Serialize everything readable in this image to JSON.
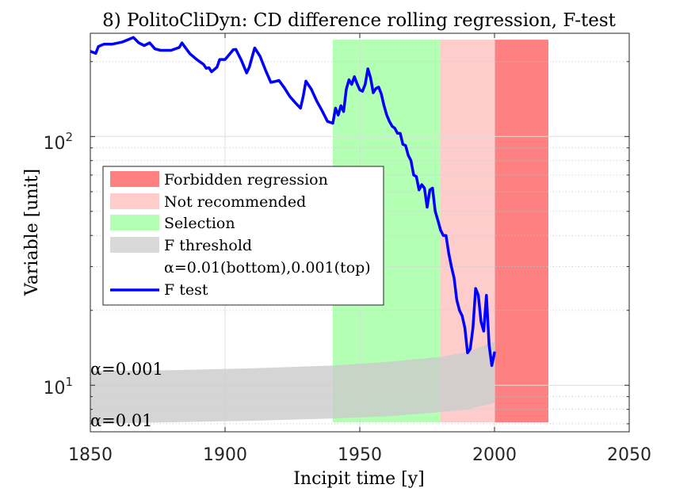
{
  "chart_data": {
    "type": "line",
    "title": "8) PolitoCliDyn: CD difference rolling regression, F-test",
    "xlabel": "Incipit time [y]",
    "ylabel": "Variable [unit]",
    "y_scale": "log",
    "xlim": [
      1850,
      2050
    ],
    "ylim": [
      6.5,
      260
    ],
    "grid": true,
    "x_ticks": [
      1850,
      1900,
      1950,
      2000,
      2050
    ],
    "x_tick_labels": [
      "1850",
      "1900",
      "1950",
      "2000",
      "2050"
    ],
    "y_tick_labels": [
      {
        "value": 10,
        "base": "10",
        "exp": "1"
      },
      {
        "value": 100,
        "base": "10",
        "exp": "2"
      }
    ],
    "legend_position": "left-center",
    "legend": {
      "forbidden": "Forbidden regression",
      "not_recommended": "Not recommended",
      "selection": "Selection",
      "f_threshold": "F threshold",
      "alpha_note": "α=0.01(bottom),0.001(top)",
      "f_test": "F test"
    },
    "annotations": {
      "alpha_top": "α=0.001",
      "alpha_bottom": "α=0.01"
    },
    "regions": [
      {
        "name": "Selection",
        "x0": 1940,
        "x1": 1980,
        "color": "#b3ffb3"
      },
      {
        "name": "Not recommended",
        "x0": 1980,
        "x1": 2000,
        "color": "#ffcccc"
      },
      {
        "name": "Forbidden regression",
        "x0": 2000,
        "x1": 2020,
        "color": "#ff8080"
      }
    ],
    "threshold_band": {
      "color": "#cccccc",
      "x": [
        1850,
        1880,
        1910,
        1940,
        1960,
        1980,
        1990,
        2000
      ],
      "lower": [
        7.0,
        7.1,
        7.2,
        7.35,
        7.5,
        7.8,
        8.0,
        8.5
      ],
      "upper": [
        11.4,
        11.5,
        11.7,
        12.0,
        12.4,
        13.0,
        13.6,
        15.0
      ]
    },
    "series": [
      {
        "name": "F test",
        "color": "#0000ff",
        "x": [
          1850,
          1852,
          1853,
          1855,
          1858,
          1862,
          1866,
          1868,
          1870,
          1872,
          1874,
          1876,
          1880,
          1883,
          1884,
          1886,
          1887,
          1889,
          1890,
          1892,
          1893,
          1894,
          1895,
          1896,
          1897,
          1898,
          1900,
          1901,
          1903,
          1904,
          1906,
          1908,
          1909,
          1910,
          1911,
          1913,
          1915,
          1917,
          1919,
          1920,
          1922,
          1924,
          1926,
          1928,
          1929,
          1930,
          1932,
          1934,
          1936,
          1938,
          1940,
          1941,
          1942,
          1943,
          1944,
          1945,
          1946,
          1947,
          1948,
          1949,
          1950,
          1951,
          1952,
          1953,
          1954,
          1955,
          1956,
          1957,
          1958,
          1959,
          1960,
          1961,
          1962,
          1963,
          1964,
          1965,
          1966,
          1967,
          1968,
          1969,
          1970,
          1971,
          1972,
          1973,
          1974,
          1975,
          1976,
          1977,
          1978,
          1979,
          1980,
          1981,
          1982,
          1983,
          1984,
          1985,
          1986,
          1987,
          1988,
          1989,
          1990,
          1991,
          1992,
          1993,
          1994,
          1995,
          1996,
          1997,
          1998,
          1999,
          2000
        ],
        "values": [
          220,
          216,
          230,
          235,
          235,
          240,
          250,
          238,
          232,
          238,
          225,
          222,
          222,
          228,
          238,
          222,
          215,
          206,
          202,
          195,
          188,
          189,
          182,
          186,
          190,
          204,
          204,
          210,
          223,
          224,
          203,
          180,
          190,
          208,
          227,
          210,
          185,
          165,
          167,
          168,
          157,
          145,
          137,
          130,
          145,
          167,
          155,
          139,
          127,
          115,
          113,
          130,
          122,
          133,
          126,
          155,
          169,
          162,
          174,
          163,
          154,
          152,
          162,
          187,
          172,
          150,
          156,
          158,
          148,
          133,
          122,
          115,
          110,
          108,
          103,
          103,
          93,
          92,
          84,
          80,
          70,
          69,
          61,
          64,
          62,
          52,
          61,
          62,
          50,
          46,
          42,
          40,
          40,
          34,
          30,
          27,
          22,
          20,
          19,
          17,
          13.5,
          14.0,
          17,
          24.5,
          23,
          18,
          16.5,
          23,
          14.5,
          12,
          13.5
        ]
      }
    ]
  }
}
